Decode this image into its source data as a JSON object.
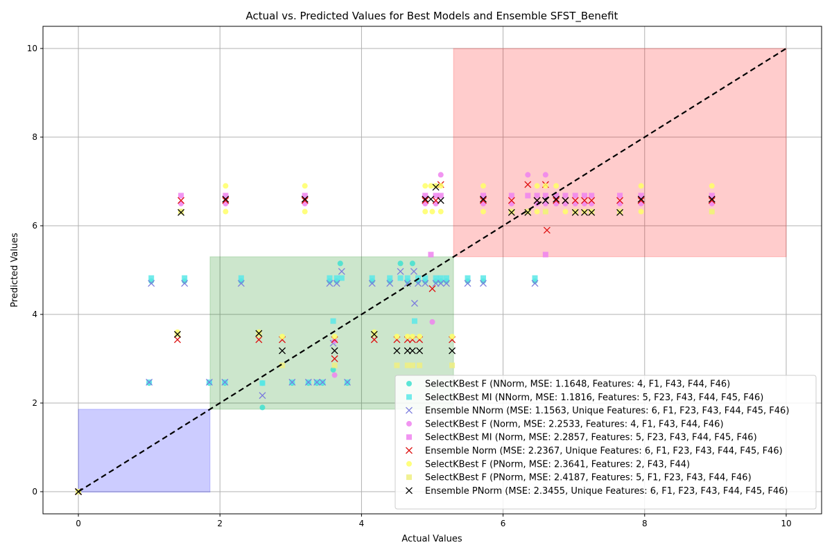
{
  "chart_data": {
    "type": "scatter",
    "title": "Actual vs. Predicted Values for Best Models and Ensemble SFST_Benefit",
    "xlabel": "Actual Values",
    "ylabel": "Predicted Values",
    "xlim": [
      -0.5,
      10.5
    ],
    "ylim": [
      -0.5,
      10.5
    ],
    "xticks": [
      "0",
      "2",
      "4",
      "6",
      "8",
      "10"
    ],
    "yticks": [
      "0",
      "2",
      "4",
      "6",
      "8",
      "10"
    ],
    "grid": true,
    "legend_position": "lower-right",
    "regions": [
      {
        "x": [
          0,
          1.86
        ],
        "y": [
          -0.01,
          1.86
        ],
        "color": "#0000ff",
        "opacity": 0.2
      },
      {
        "x": [
          1.86,
          5.3
        ],
        "y": [
          1.86,
          5.3
        ],
        "color": "#008000",
        "opacity": 0.2
      },
      {
        "x": [
          5.3,
          10
        ],
        "y": [
          5.3,
          10
        ],
        "color": "#ff0000",
        "opacity": 0.2
      }
    ],
    "reference_line": {
      "x": [
        0,
        10
      ],
      "y": [
        0,
        10
      ],
      "color": "#000000",
      "style": "dashed"
    },
    "series": [
      {
        "name": "SelectKBest F (NNorm, MSE: 1.1648, Features: 4, F1, F43, F44, F46)",
        "marker": "circle",
        "color": "#40e0d0",
        "points": [
          [
            0,
            0
          ],
          [
            1.03,
            4.75
          ],
          [
            1.5,
            4.75
          ],
          [
            1.0,
            2.45
          ],
          [
            1.85,
            2.45
          ],
          [
            2.07,
            2.45
          ],
          [
            2.3,
            4.75
          ],
          [
            2.6,
            1.9
          ],
          [
            2.6,
            2.45
          ],
          [
            3.02,
            2.45
          ],
          [
            3.25,
            2.45
          ],
          [
            3.37,
            2.45
          ],
          [
            3.45,
            2.45
          ],
          [
            3.55,
            4.75
          ],
          [
            3.6,
            2.75
          ],
          [
            3.65,
            4.75
          ],
          [
            3.7,
            5.15
          ],
          [
            3.8,
            2.45
          ],
          [
            4.15,
            4.75
          ],
          [
            4.4,
            4.75
          ],
          [
            4.55,
            5.15
          ],
          [
            4.65,
            4.75
          ],
          [
            4.72,
            5.15
          ],
          [
            4.8,
            4.75
          ],
          [
            4.9,
            4.75
          ],
          [
            5.05,
            4.75
          ],
          [
            5.12,
            4.75
          ],
          [
            5.2,
            4.75
          ],
          [
            5.5,
            4.75
          ],
          [
            5.72,
            4.75
          ],
          [
            6.45,
            4.75
          ]
        ]
      },
      {
        "name": "SelectKBest MI (NNorm, MSE: 1.1816, Features: 5, F23, F43, F44, F45, F46)",
        "marker": "square",
        "color": "#5ae8e8",
        "points": [
          [
            0,
            0
          ],
          [
            1.03,
            4.82
          ],
          [
            1.5,
            4.82
          ],
          [
            1.0,
            2.47
          ],
          [
            1.85,
            2.47
          ],
          [
            2.07,
            2.47
          ],
          [
            2.3,
            4.82
          ],
          [
            2.6,
            2.45
          ],
          [
            3.02,
            2.47
          ],
          [
            3.25,
            2.47
          ],
          [
            3.37,
            2.47
          ],
          [
            3.45,
            2.47
          ],
          [
            3.55,
            4.82
          ],
          [
            3.6,
            3.85
          ],
          [
            3.65,
            4.82
          ],
          [
            3.72,
            4.82
          ],
          [
            3.8,
            2.47
          ],
          [
            4.15,
            4.82
          ],
          [
            4.4,
            4.82
          ],
          [
            4.55,
            4.82
          ],
          [
            4.65,
            4.82
          ],
          [
            4.75,
            3.85
          ],
          [
            4.8,
            4.82
          ],
          [
            4.9,
            4.82
          ],
          [
            5.05,
            4.82
          ],
          [
            5.12,
            4.82
          ],
          [
            5.2,
            4.82
          ],
          [
            5.5,
            4.82
          ],
          [
            5.72,
            4.82
          ],
          [
            6.45,
            4.82
          ]
        ]
      },
      {
        "name": "Ensemble NNorm (MSE: 1.1563, Unique Features: 6, F1, F23, F43, F44, F45, F46)",
        "marker": "x",
        "color": "#7b7bdd",
        "points": [
          [
            0,
            0
          ],
          [
            1.03,
            4.7
          ],
          [
            1.5,
            4.7
          ],
          [
            1.0,
            2.47
          ],
          [
            1.85,
            2.47
          ],
          [
            2.07,
            2.47
          ],
          [
            2.3,
            4.7
          ],
          [
            2.6,
            2.17
          ],
          [
            3.02,
            2.47
          ],
          [
            3.25,
            2.47
          ],
          [
            3.37,
            2.47
          ],
          [
            3.45,
            2.47
          ],
          [
            3.55,
            4.7
          ],
          [
            3.6,
            3.35
          ],
          [
            3.65,
            4.7
          ],
          [
            3.72,
            4.97
          ],
          [
            3.8,
            2.47
          ],
          [
            4.15,
            4.7
          ],
          [
            4.4,
            4.7
          ],
          [
            4.55,
            4.97
          ],
          [
            4.65,
            4.7
          ],
          [
            4.74,
            4.97
          ],
          [
            4.75,
            4.25
          ],
          [
            4.8,
            4.7
          ],
          [
            4.9,
            4.7
          ],
          [
            5.05,
            4.7
          ],
          [
            5.12,
            4.7
          ],
          [
            5.2,
            4.7
          ],
          [
            5.5,
            4.7
          ],
          [
            5.72,
            4.7
          ],
          [
            6.45,
            4.7
          ]
        ]
      },
      {
        "name": "SelectKBest F (Norm, MSE: 2.2533, Features: 4, F1, F43, F44, F46)",
        "marker": "circle",
        "color": "#ee82ee",
        "points": [
          [
            0,
            0
          ],
          [
            1.45,
            6.5
          ],
          [
            2.08,
            6.5
          ],
          [
            3.2,
            6.5
          ],
          [
            3.62,
            2.63
          ],
          [
            3.62,
            3.4
          ],
          [
            5.0,
            3.83
          ],
          [
            4.9,
            6.5
          ],
          [
            5.05,
            6.5
          ],
          [
            5.12,
            7.15
          ],
          [
            5.72,
            6.5
          ],
          [
            6.12,
            6.5
          ],
          [
            6.35,
            7.15
          ],
          [
            6.48,
            6.5
          ],
          [
            6.6,
            7.15
          ],
          [
            6.6,
            6.5
          ],
          [
            6.75,
            6.5
          ],
          [
            6.88,
            6.5
          ],
          [
            7.02,
            6.5
          ],
          [
            7.15,
            6.5
          ],
          [
            7.25,
            6.5
          ],
          [
            7.65,
            6.5
          ],
          [
            7.95,
            6.5
          ],
          [
            8.95,
            6.5
          ]
        ]
      },
      {
        "name": "SelectKBest MI (Norm, MSE: 2.2857, Features: 5, F23, F43, F44, F45, F46)",
        "marker": "square",
        "color": "#ee82ee",
        "points": [
          [
            0,
            0
          ],
          [
            1.45,
            6.68
          ],
          [
            2.08,
            6.68
          ],
          [
            3.2,
            6.68
          ],
          [
            4.98,
            5.35
          ],
          [
            4.9,
            6.68
          ],
          [
            5.05,
            6.68
          ],
          [
            5.12,
            6.68
          ],
          [
            5.72,
            6.68
          ],
          [
            6.12,
            6.68
          ],
          [
            6.35,
            6.68
          ],
          [
            6.48,
            6.68
          ],
          [
            6.6,
            5.35
          ],
          [
            6.6,
            6.68
          ],
          [
            6.75,
            6.68
          ],
          [
            6.88,
            6.68
          ],
          [
            7.02,
            6.68
          ],
          [
            7.15,
            6.68
          ],
          [
            7.25,
            6.68
          ],
          [
            7.65,
            6.68
          ],
          [
            7.95,
            6.68
          ],
          [
            8.95,
            6.68
          ]
        ]
      },
      {
        "name": "Ensemble Norm (MSE: 2.2367, Unique Features: 6, F1, F23, F43, F44, F45, F46)",
        "marker": "x",
        "color": "#dd1111",
        "points": [
          [
            0,
            0
          ],
          [
            1.4,
            3.43
          ],
          [
            1.45,
            6.57
          ],
          [
            2.08,
            6.57
          ],
          [
            2.55,
            3.43
          ],
          [
            2.88,
            3.43
          ],
          [
            3.2,
            6.57
          ],
          [
            3.62,
            3.0
          ],
          [
            3.62,
            3.43
          ],
          [
            4.18,
            3.43
          ],
          [
            4.5,
            3.43
          ],
          [
            4.65,
            3.43
          ],
          [
            4.72,
            3.43
          ],
          [
            4.82,
            3.43
          ],
          [
            5.0,
            4.58
          ],
          [
            4.9,
            6.57
          ],
          [
            5.05,
            6.57
          ],
          [
            5.12,
            6.93
          ],
          [
            5.28,
            3.43
          ],
          [
            5.72,
            6.57
          ],
          [
            6.12,
            6.57
          ],
          [
            6.35,
            6.93
          ],
          [
            6.48,
            6.57
          ],
          [
            6.6,
            6.93
          ],
          [
            6.62,
            5.9
          ],
          [
            6.75,
            6.57
          ],
          [
            6.88,
            6.57
          ],
          [
            7.02,
            6.57
          ],
          [
            7.15,
            6.57
          ],
          [
            7.25,
            6.57
          ],
          [
            7.65,
            6.57
          ],
          [
            7.95,
            6.57
          ],
          [
            8.95,
            6.57
          ]
        ]
      },
      {
        "name": "SelectKBest F (PNorm, MSE: 2.3641, Features: 2, F43, F44)",
        "marker": "circle",
        "color": "#ffff66",
        "points": [
          [
            0,
            0
          ],
          [
            1.4,
            3.6
          ],
          [
            1.45,
            6.32
          ],
          [
            2.08,
            6.32
          ],
          [
            2.08,
            6.9
          ],
          [
            2.55,
            3.6
          ],
          [
            2.88,
            3.5
          ],
          [
            3.2,
            6.32
          ],
          [
            3.2,
            6.9
          ],
          [
            3.62,
            3.5
          ],
          [
            4.18,
            3.6
          ],
          [
            4.5,
            3.5
          ],
          [
            4.65,
            3.5
          ],
          [
            4.72,
            3.5
          ],
          [
            4.82,
            3.5
          ],
          [
            4.9,
            6.32
          ],
          [
            4.9,
            6.9
          ],
          [
            4.98,
            6.9
          ],
          [
            5.0,
            6.32
          ],
          [
            5.05,
            6.9
          ],
          [
            5.12,
            6.32
          ],
          [
            5.12,
            6.9
          ],
          [
            5.28,
            3.5
          ],
          [
            5.72,
            6.32
          ],
          [
            5.72,
            6.9
          ],
          [
            6.12,
            6.32
          ],
          [
            6.35,
            6.32
          ],
          [
            6.48,
            6.32
          ],
          [
            6.48,
            6.9
          ],
          [
            6.6,
            6.32
          ],
          [
            6.6,
            6.9
          ],
          [
            6.75,
            6.9
          ],
          [
            6.88,
            6.32
          ],
          [
            7.02,
            6.32
          ],
          [
            7.15,
            6.32
          ],
          [
            7.25,
            6.32
          ],
          [
            7.65,
            6.32
          ],
          [
            7.95,
            6.32
          ],
          [
            7.95,
            6.9
          ],
          [
            8.95,
            6.32
          ],
          [
            8.95,
            6.9
          ]
        ]
      },
      {
        "name": "SelectKBest F (PNorm, MSE: 2.4187, Features: 5, F1, F23, F43, F44, F46)",
        "marker": "square",
        "color": "#eeee80",
        "points": [
          [
            0,
            0
          ],
          [
            1.4,
            3.55
          ],
          [
            1.45,
            6.32
          ],
          [
            2.55,
            3.55
          ],
          [
            2.88,
            2.85
          ],
          [
            3.62,
            2.85
          ],
          [
            4.18,
            3.55
          ],
          [
            4.5,
            2.85
          ],
          [
            4.65,
            2.85
          ],
          [
            4.72,
            2.85
          ],
          [
            4.82,
            2.85
          ],
          [
            5.28,
            2.85
          ],
          [
            6.12,
            6.32
          ],
          [
            6.35,
            6.32
          ],
          [
            6.6,
            6.32
          ],
          [
            7.02,
            6.32
          ],
          [
            7.25,
            6.32
          ],
          [
            7.65,
            6.32
          ],
          [
            8.95,
            6.32
          ]
        ]
      },
      {
        "name": "Ensemble PNorm (MSE: 2.3455, Unique Features: 6, F1, F23, F43, F44, F45, F46)",
        "marker": "x",
        "color": "#000000",
        "points": [
          [
            0,
            0
          ],
          [
            1.4,
            3.55
          ],
          [
            1.45,
            6.3
          ],
          [
            2.08,
            6.6
          ],
          [
            2.55,
            3.57
          ],
          [
            2.88,
            3.18
          ],
          [
            3.2,
            6.6
          ],
          [
            3.62,
            3.18
          ],
          [
            4.18,
            3.55
          ],
          [
            4.5,
            3.18
          ],
          [
            4.65,
            3.18
          ],
          [
            4.72,
            3.18
          ],
          [
            4.82,
            3.18
          ],
          [
            4.9,
            6.6
          ],
          [
            4.98,
            6.6
          ],
          [
            5.05,
            6.87
          ],
          [
            5.12,
            6.57
          ],
          [
            5.28,
            3.18
          ],
          [
            5.72,
            6.6
          ],
          [
            6.12,
            6.3
          ],
          [
            6.35,
            6.3
          ],
          [
            6.48,
            6.57
          ],
          [
            6.6,
            6.57
          ],
          [
            6.75,
            6.6
          ],
          [
            6.88,
            6.57
          ],
          [
            7.02,
            6.3
          ],
          [
            7.15,
            6.3
          ],
          [
            7.25,
            6.3
          ],
          [
            7.65,
            6.3
          ],
          [
            7.95,
            6.6
          ],
          [
            8.95,
            6.6
          ]
        ]
      }
    ]
  }
}
